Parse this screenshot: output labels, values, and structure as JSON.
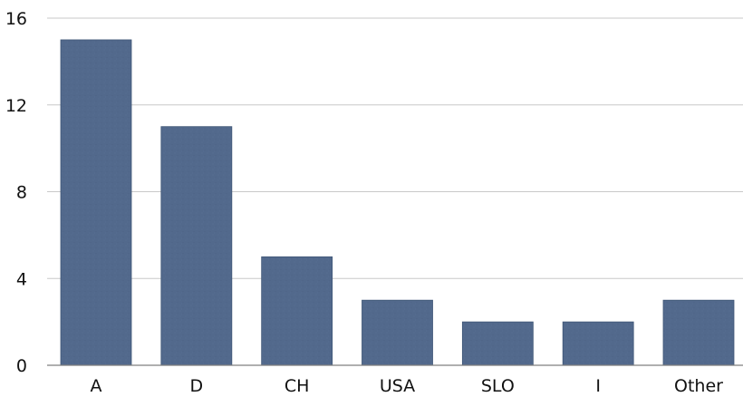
{
  "chart_data": {
    "type": "bar",
    "title": "",
    "xlabel": "",
    "ylabel": "",
    "categories": [
      "A",
      "D",
      "CH",
      "USA",
      "SLO",
      "I",
      "Other"
    ],
    "values": [
      15,
      11,
      5,
      3,
      2,
      2,
      3
    ],
    "ylim": [
      0,
      16
    ],
    "yticks": [
      "0",
      "4",
      "8",
      "12",
      "16"
    ],
    "grid": true,
    "legend": "none",
    "colors": {
      "bar": "#52698c",
      "bar_edge": "#3f5676",
      "grid": "#c8c8c8",
      "axis": "#7f7f7f"
    }
  }
}
